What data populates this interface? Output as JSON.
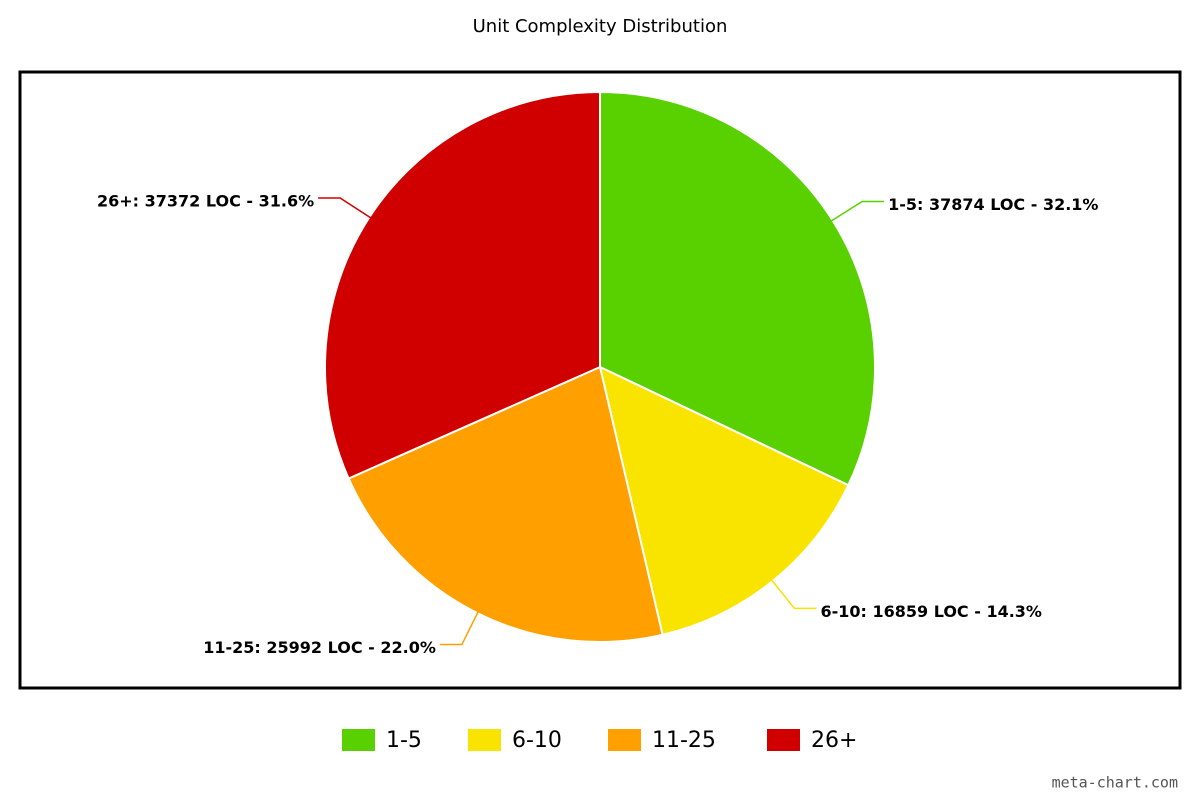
{
  "chart_data": {
    "type": "pie",
    "title": "Unit Complexity Distribution",
    "categories": [
      "1-5",
      "6-10",
      "11-25",
      "26+"
    ],
    "values": [
      37874,
      16859,
      25992,
      37372
    ],
    "value_labels": [
      "1-5: 37874 LOC - 32.1%",
      "6-10: 16859 LOC - 14.3%",
      "11-25: 25992 LOC - 22.0%",
      "26+: 37372 LOC - 31.6%"
    ],
    "colors": [
      "#59d100",
      "#f9e400",
      "#ff9f00",
      "#d00000"
    ],
    "legend": "bottom",
    "credit": "meta-chart.com"
  }
}
